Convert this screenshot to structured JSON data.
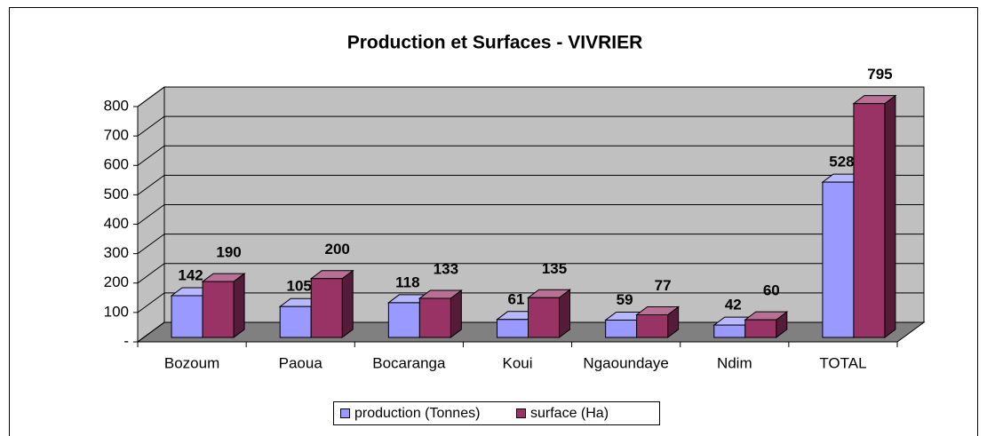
{
  "chart_data": {
    "type": "bar3d",
    "title": "Production et Surfaces - VIVRIER",
    "categories": [
      "Bozoum",
      "Paoua",
      "Bocaranga",
      "Koui",
      "Ngaoundaye",
      "Ndim",
      "TOTAL"
    ],
    "series": [
      {
        "name": "production (Tonnes)",
        "color": "#9999ff",
        "values": [
          142,
          105,
          118,
          61,
          59,
          42,
          528
        ]
      },
      {
        "name": "surface (Ha)",
        "color": "#993366",
        "values": [
          190,
          200,
          133,
          135,
          77,
          60,
          795
        ]
      }
    ],
    "ylim": [
      0,
      800
    ],
    "yticks": [
      {
        "value": 0,
        "label": "-"
      },
      100,
      200,
      300,
      400,
      500,
      600,
      700,
      800
    ],
    "grid": true,
    "legend": "bottom"
  }
}
